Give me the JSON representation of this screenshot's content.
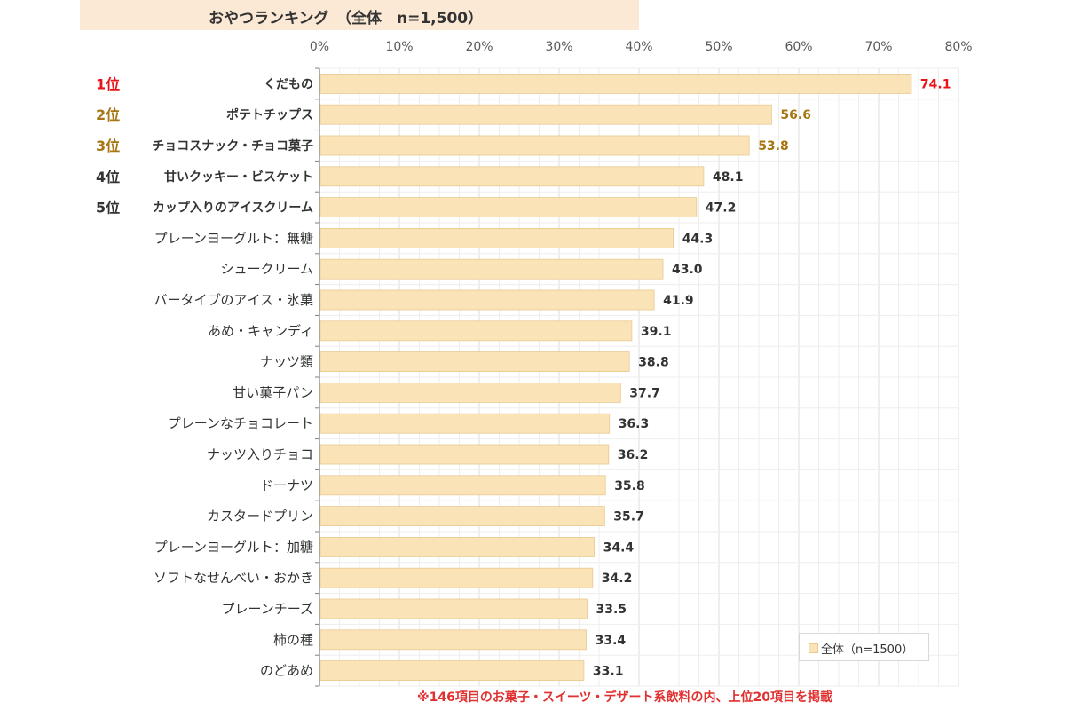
{
  "title": "おやつランキング　（全体　n=1,500）",
  "footnote": "※146項目のお菓子・スイーツ・デザート系飲料の内、上位20項目を掲載",
  "colors": {
    "bar_fill": "#fbe3b8",
    "bar_stroke": "#e8c990",
    "rank1": "#e8141a",
    "rank2_3": "#a87513",
    "rank4_5": "#333333",
    "value_default": "#333333",
    "grid": "#e6e6e6"
  },
  "chart_data": {
    "type": "bar",
    "orientation": "horizontal",
    "categories": [
      "くだもの",
      "ポテトチップス",
      "チョコスナック・チョコ菓子",
      "甘いクッキー・ビスケット",
      "カップ入りのアイスクリーム",
      "プレーンヨーグルト：無糖",
      "シュークリーム",
      "バータイプのアイス・氷菓",
      "あめ・キャンディ",
      "ナッツ類",
      "甘い菓子パン",
      "プレーンなチョコレート",
      "ナッツ入りチョコ",
      "ドーナツ",
      "カスタードプリン",
      "プレーンヨーグルト：加糖",
      "ソフトなせんべい・おかき",
      "プレーンチーズ",
      "柿の種",
      "のどあめ"
    ],
    "series": [
      {
        "name": "全体（n=1500）",
        "values": [
          74.1,
          56.6,
          53.8,
          48.1,
          47.2,
          44.3,
          43.0,
          41.9,
          39.1,
          38.8,
          37.7,
          36.3,
          36.2,
          35.8,
          35.7,
          34.4,
          34.2,
          33.5,
          33.4,
          33.1
        ]
      }
    ],
    "value_labels": [
      "74.1",
      "56.6",
      "53.8",
      "48.1",
      "47.2",
      "44.3",
      "43.0",
      "41.9",
      "39.1",
      "38.8",
      "37.7",
      "36.3",
      "36.2",
      "35.8",
      "35.7",
      "34.4",
      "34.2",
      "33.5",
      "33.4",
      "33.1"
    ],
    "ranks": [
      "1位",
      "2位",
      "3位",
      "4位",
      "5位"
    ],
    "xlim": [
      0,
      80
    ],
    "xticks": [
      "0%",
      "10%",
      "20%",
      "30%",
      "40%",
      "50%",
      "60%",
      "70%",
      "80%"
    ],
    "grid": true,
    "legend": "bottom-right"
  }
}
